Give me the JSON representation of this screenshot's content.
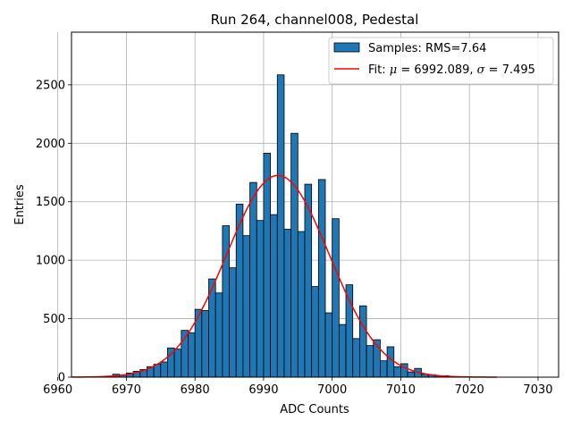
{
  "chart_data": {
    "type": "bar",
    "title": "Run 264, channel008, Pedestal",
    "xlabel": "ADC Counts",
    "ylabel": "Entries",
    "xlim": [
      6962,
      7033
    ],
    "ylim": [
      0,
      2950
    ],
    "xticks": [
      6960,
      6970,
      6980,
      6990,
      7000,
      7010,
      7020,
      7030
    ],
    "yticks": [
      0,
      500,
      1000,
      1500,
      2000,
      2500
    ],
    "grid": true,
    "legend_position": "top-right",
    "bin_width": 1,
    "colors": {
      "bars": "#1f77b4",
      "bar_edge": "#000000",
      "fit": "#ff0000",
      "grid": "#b0b0b0"
    },
    "series": [
      {
        "name": "Samples: RMS=7.64",
        "kind": "histogram",
        "bin_starts": [
          6962,
          6963,
          6964,
          6965,
          6966,
          6967,
          6968,
          6969,
          6970,
          6971,
          6972,
          6973,
          6974,
          6975,
          6976,
          6977,
          6978,
          6979,
          6980,
          6981,
          6982,
          6983,
          6984,
          6985,
          6986,
          6987,
          6988,
          6989,
          6990,
          6991,
          6992,
          6993,
          6994,
          6995,
          6996,
          6997,
          6998,
          6999,
          7000,
          7001,
          7002,
          7003,
          7004,
          7005,
          7006,
          7007,
          7008,
          7009,
          7010,
          7011,
          7012,
          7013,
          7014,
          7015,
          7016,
          7017,
          7018,
          7019,
          7020,
          7021,
          7022,
          7023
        ],
        "values": [
          0,
          1,
          2,
          3,
          5,
          8,
          25,
          18,
          35,
          50,
          65,
          90,
          110,
          130,
          250,
          240,
          400,
          380,
          580,
          570,
          840,
          720,
          1295,
          935,
          1480,
          1210,
          1665,
          1340,
          1915,
          1390,
          2585,
          1265,
          2085,
          1245,
          1650,
          775,
          1690,
          550,
          1355,
          450,
          790,
          330,
          610,
          270,
          320,
          140,
          260,
          90,
          115,
          45,
          75,
          25,
          20,
          10,
          12,
          5,
          4,
          2,
          1,
          1,
          1,
          0
        ]
      },
      {
        "name": "Fit: μ = 6992.089, σ = 7.495",
        "kind": "gaussian",
        "mu": 6992.089,
        "sigma": 7.495,
        "amplitude": 1725,
        "x_range": [
          6962,
          7024
        ]
      }
    ],
    "legend": {
      "samples_label": "Samples: RMS=7.64",
      "fit_label_prefix": "Fit: ",
      "mu_symbol": "μ",
      "mu_value": " = 6992.089, ",
      "sigma_symbol": "σ",
      "sigma_value": " = 7.495"
    }
  }
}
